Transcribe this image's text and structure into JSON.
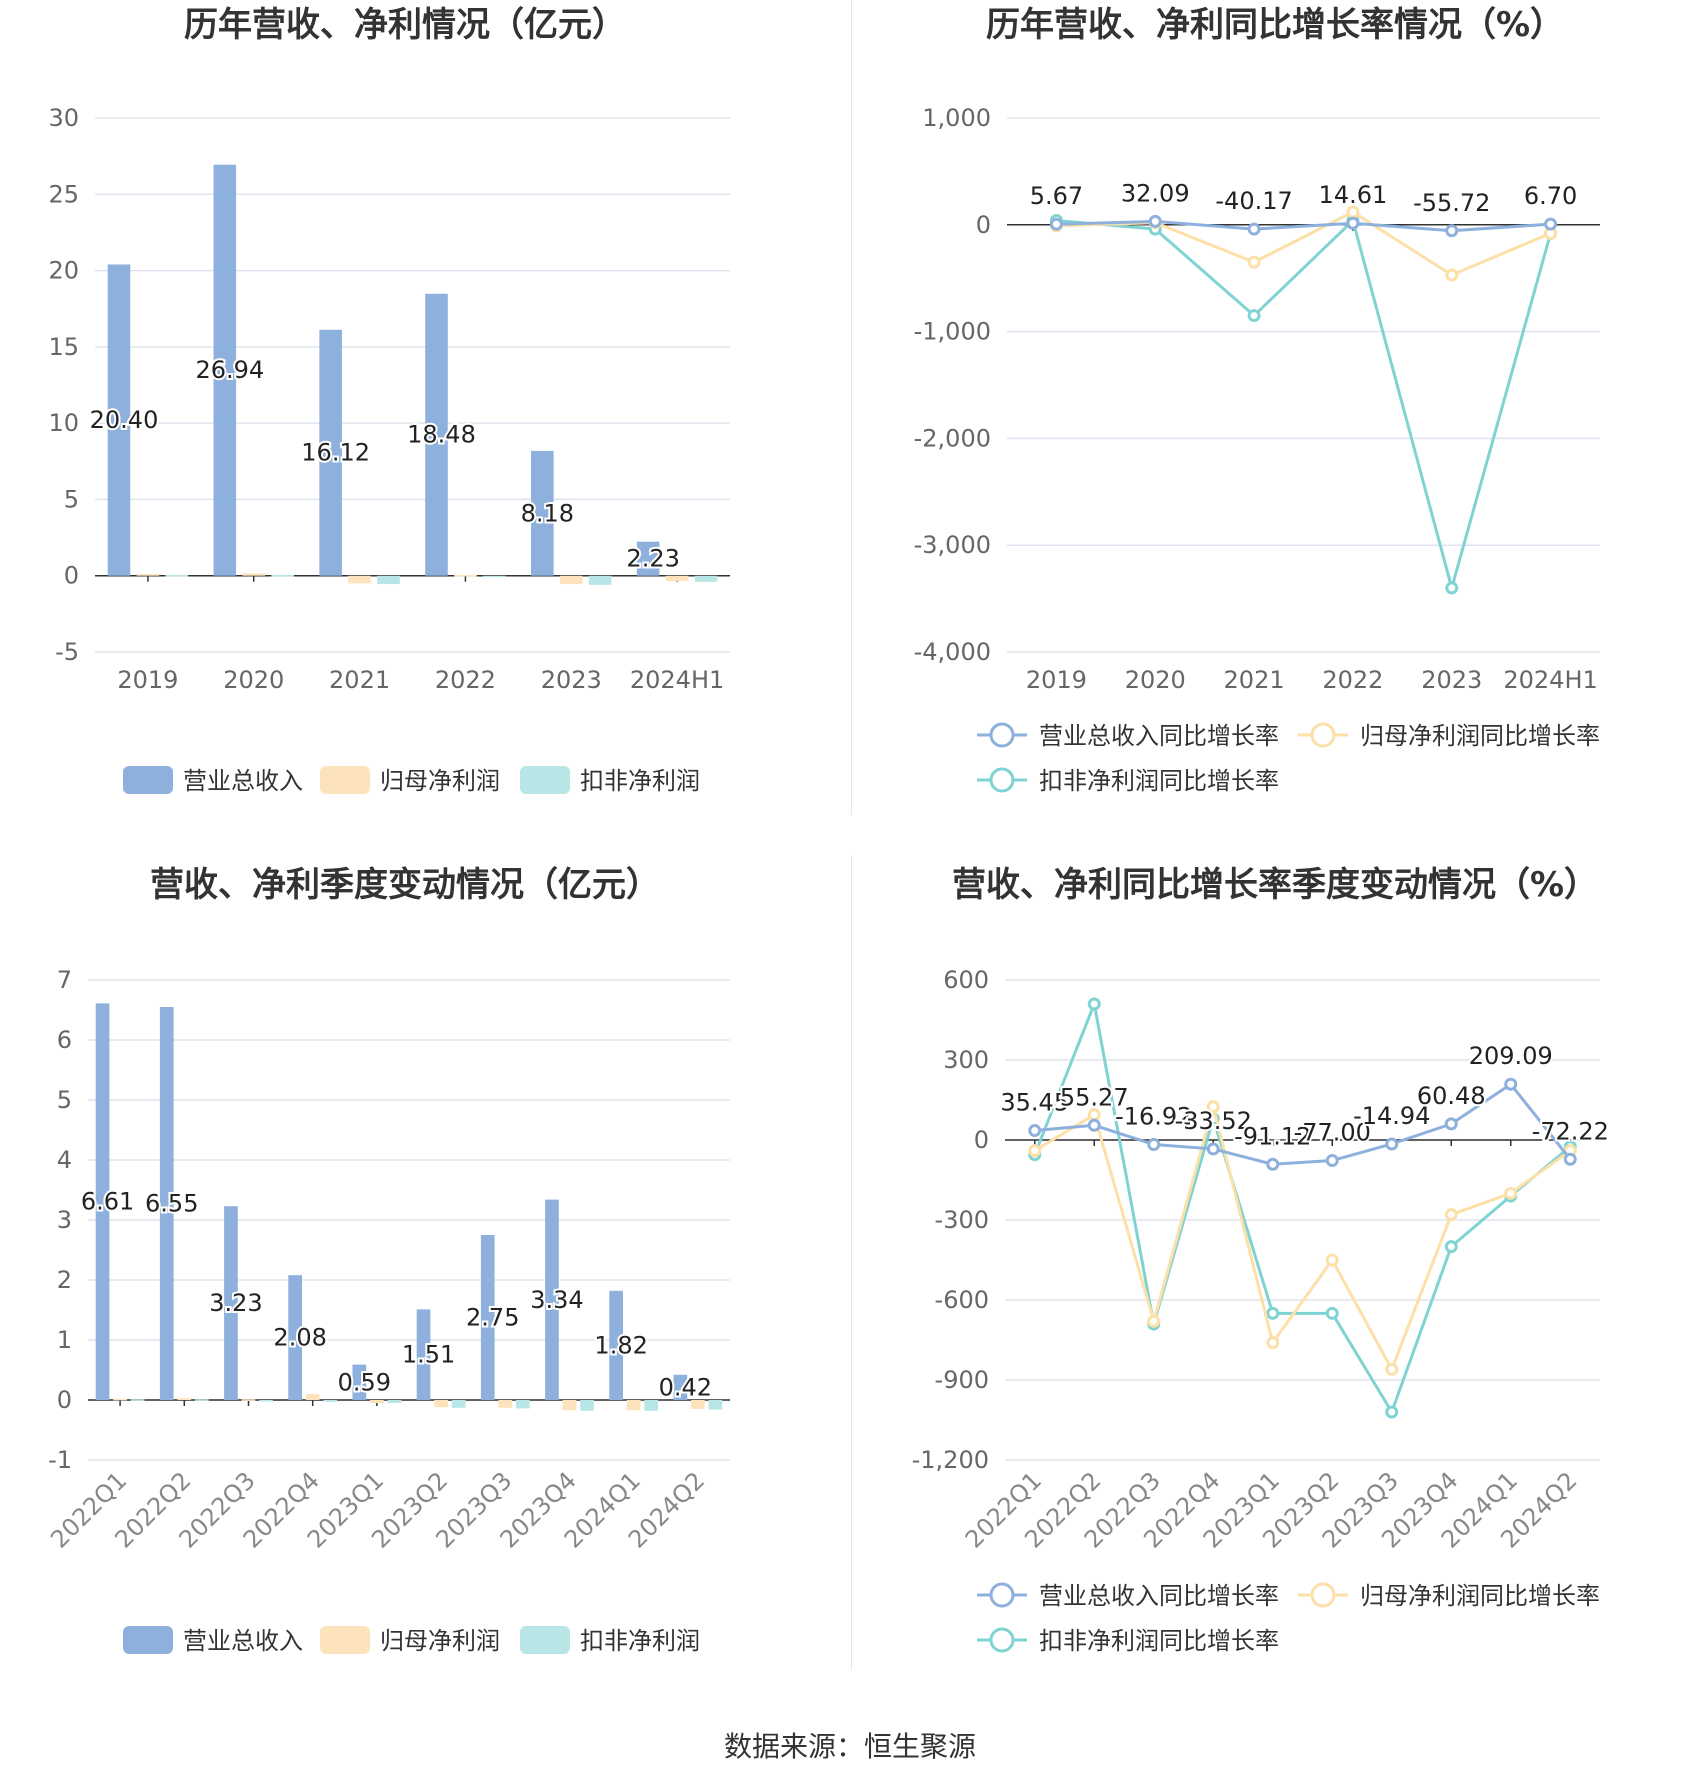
{
  "source_text": "数据来源：恒生聚源",
  "chart_data": [
    {
      "type": "bar",
      "title": "历年营收、净利情况（亿元）",
      "categories": [
        "2019",
        "2020",
        "2021",
        "2022",
        "2023",
        "2024H1"
      ],
      "ylim": [
        -5,
        30
      ],
      "yticks": [
        -5,
        0,
        5,
        10,
        15,
        20,
        25,
        30
      ],
      "grid": true,
      "legend_position": "bottom",
      "series": [
        {
          "name": "营业总收入",
          "color": "#8eb0dc",
          "values": [
            20.4,
            26.94,
            16.12,
            18.48,
            8.18,
            2.23
          ],
          "labels": [
            "20.40",
            "26.94",
            "16.12",
            "18.48",
            "8.18",
            "2.23"
          ]
        },
        {
          "name": "归母净利润",
          "color": "#fde3bb",
          "values": [
            0.1,
            0.15,
            -0.5,
            0.05,
            -0.55,
            -0.35
          ]
        },
        {
          "name": "扣非净利润",
          "color": "#b8e6e6",
          "values": [
            0.05,
            0.05,
            -0.55,
            -0.05,
            -0.6,
            -0.4
          ]
        }
      ]
    },
    {
      "type": "line",
      "title": "历年营收、净利同比增长率情况（%）",
      "categories": [
        "2019",
        "2020",
        "2021",
        "2022",
        "2023",
        "2024H1"
      ],
      "ylim": [
        -4000,
        1000
      ],
      "yticks": [
        -4000,
        -3000,
        -2000,
        -1000,
        0,
        1000
      ],
      "ytick_labels": [
        "-4,000",
        "-3,000",
        "-2,000",
        "-1,000",
        "0",
        "1,000"
      ],
      "grid": true,
      "legend_position": "bottom",
      "series": [
        {
          "name": "营业总收入同比增长率",
          "color": "#8eb0dc",
          "values": [
            5.67,
            32.09,
            -40.17,
            14.61,
            -55.72,
            6.7
          ],
          "labels": [
            "5.67",
            "32.09",
            "-40.17",
            "14.61",
            "-55.72",
            "6.70"
          ]
        },
        {
          "name": "归母净利润同比增长率",
          "color": "#fddfa8",
          "values": [
            -10,
            20,
            -350,
            120,
            -470,
            -80
          ]
        },
        {
          "name": "扣非净利润同比增长率",
          "color": "#7fd3d3",
          "values": [
            40,
            -40,
            -850,
            40,
            -3400,
            -80
          ]
        }
      ]
    },
    {
      "type": "bar",
      "title": "营收、净利季度变动情况（亿元）",
      "categories": [
        "2022Q1",
        "2022Q2",
        "2022Q3",
        "2022Q4",
        "2023Q1",
        "2023Q2",
        "2023Q3",
        "2023Q4",
        "2024Q1",
        "2024Q2"
      ],
      "ylim": [
        -1,
        7
      ],
      "yticks": [
        -1,
        0,
        1,
        2,
        3,
        4,
        5,
        6,
        7
      ],
      "grid": true,
      "legend_position": "bottom",
      "series": [
        {
          "name": "营业总收入",
          "color": "#8eb0dc",
          "values": [
            6.61,
            6.55,
            3.23,
            2.08,
            0.59,
            1.51,
            2.75,
            3.34,
            1.82,
            0.42
          ],
          "labels": [
            "6.61",
            "6.55",
            "3.23",
            "2.08",
            "0.59",
            "1.51",
            "2.75",
            "3.34",
            "1.82",
            "0.42"
          ]
        },
        {
          "name": "归母净利润",
          "color": "#fde3bb",
          "values": [
            0.02,
            0.03,
            0.01,
            0.1,
            -0.05,
            -0.12,
            -0.13,
            -0.17,
            -0.17,
            -0.15
          ]
        },
        {
          "name": "扣非净利润",
          "color": "#b8e6e6",
          "values": [
            0.01,
            0.01,
            0.0,
            -0.03,
            -0.05,
            -0.13,
            -0.14,
            -0.18,
            -0.18,
            -0.16
          ]
        }
      ]
    },
    {
      "type": "line",
      "title": "营收、净利同比增长率季度变动情况（%）",
      "categories": [
        "2022Q1",
        "2022Q2",
        "2022Q3",
        "2022Q4",
        "2023Q1",
        "2023Q2",
        "2023Q3",
        "2023Q4",
        "2024Q1",
        "2024Q2"
      ],
      "ylim": [
        -1200,
        600
      ],
      "yticks": [
        -1200,
        -900,
        -600,
        -300,
        0,
        300,
        600
      ],
      "ytick_labels": [
        "-1,200",
        "-900",
        "-600",
        "-300",
        "0",
        "300",
        "600"
      ],
      "grid": true,
      "legend_position": "bottom",
      "series": [
        {
          "name": "营业总收入同比增长率",
          "color": "#8eb0dc",
          "values": [
            35.45,
            55.27,
            -16.92,
            -33.52,
            -91.12,
            -77.0,
            -14.94,
            60.48,
            209.09,
            -72.22
          ],
          "labels": [
            "35.45",
            "55.27",
            "-16.92",
            "-33.52",
            "-91.12",
            "-77.00",
            "-14.94",
            "60.48",
            "209.09",
            "-72.22"
          ]
        },
        {
          "name": "归母净利润同比增长率",
          "color": "#fddfa8",
          "values": [
            -40,
            95,
            -680,
            125,
            -760,
            -450,
            -860,
            -280,
            -200,
            -40
          ]
        },
        {
          "name": "扣非净利润同比增长率",
          "color": "#7fd3d3",
          "values": [
            -55,
            510,
            -690,
            80,
            -650,
            -650,
            -1020,
            -400,
            -210,
            -25
          ]
        }
      ]
    }
  ]
}
